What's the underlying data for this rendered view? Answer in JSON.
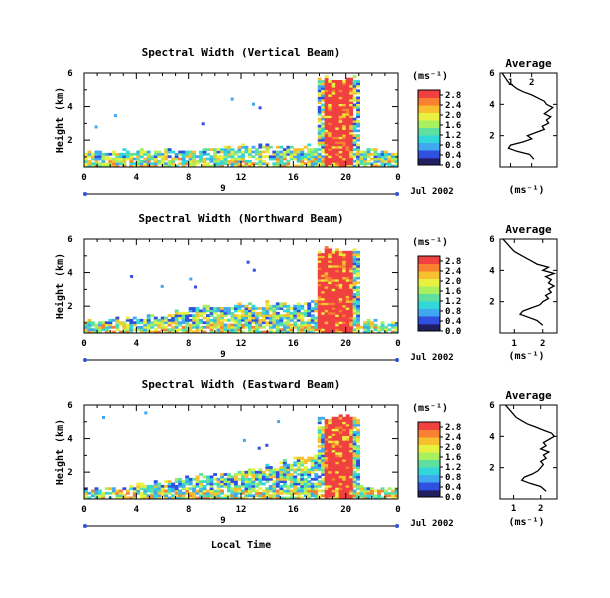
{
  "figure": {
    "xlabel": "Local Time",
    "date_label": "Jul 2002",
    "day_marker": "9",
    "unit_label": "(ms⁻¹)",
    "avg_title": "Average",
    "avg_xlabel": "(ms⁻¹)",
    "ylabel": "Height (km)",
    "colorscale": [
      "#2a2a9a",
      "#3050e0",
      "#40a8f0",
      "#30d8d8",
      "#60e0a0",
      "#a8f060",
      "#e8f040",
      "#f8c030",
      "#f88030",
      "#f04040"
    ]
  },
  "chart_data": [
    {
      "type": "heatmap",
      "title": "Spectral Width (Vertical Beam)",
      "ylabel": "Height (km)",
      "xlabel": "",
      "x_ticks": [
        "0",
        "4",
        "8",
        "12",
        "16",
        "20",
        "0"
      ],
      "y_ticks": [
        "2",
        "4",
        "6"
      ],
      "xlim": [
        0,
        24
      ],
      "ylim": [
        0.4,
        6
      ],
      "colorbar_ticks": [
        "0.0",
        "0.4",
        "0.8",
        "1.2",
        "1.6",
        "2.0",
        "2.4",
        "2.8"
      ],
      "colorbar_range": [
        0,
        3
      ],
      "cloud": {
        "x_start": 18.5,
        "x_end": 20.5,
        "top": 5.9
      },
      "boundary_layer_top": [
        1.5,
        1.5,
        1.5,
        1.5,
        1.6,
        1.5,
        1.6,
        1.6,
        1.6,
        1.7,
        1.7,
        1.8,
        1.8,
        1.8,
        1.8,
        1.8,
        1.8,
        1.8,
        5.9,
        5.9,
        5.9,
        1.6,
        1.5,
        1.5
      ],
      "average": {
        "x_ticks": [
          "1",
          "2"
        ],
        "y_ticks": [
          "2",
          "4",
          "6"
        ],
        "xlim": [
          0.5,
          3.2
        ],
        "height": [
          0.5,
          0.8,
          1.0,
          1.2,
          1.4,
          1.6,
          1.8,
          2.0,
          2.2,
          2.4,
          2.6,
          2.8,
          3.0,
          3.2,
          3.4,
          3.6,
          3.8,
          4.0,
          4.2,
          4.4,
          4.6,
          4.8,
          5.0,
          5.2,
          5.4,
          5.6,
          5.8,
          6.0
        ],
        "value": [
          2.1,
          1.9,
          1.3,
          0.9,
          1.0,
          1.6,
          2.0,
          1.8,
          2.2,
          2.6,
          2.5,
          2.8,
          2.7,
          2.9,
          2.6,
          2.8,
          3.0,
          2.7,
          2.6,
          2.3,
          2.0,
          1.6,
          1.3,
          1.1,
          0.9,
          0.8,
          0.7,
          0.6
        ]
      }
    },
    {
      "type": "heatmap",
      "title": "Spectral Width (Northward Beam)",
      "ylabel": "Height (km)",
      "xlabel": "",
      "x_ticks": [
        "0",
        "4",
        "8",
        "12",
        "16",
        "20",
        "0"
      ],
      "y_ticks": [
        "2",
        "4",
        "6"
      ],
      "xlim": [
        0,
        24
      ],
      "ylim": [
        0.4,
        6
      ],
      "colorbar_ticks": [
        "0.0",
        "0.4",
        "0.8",
        "1.2",
        "1.6",
        "2.0",
        "2.4",
        "2.8"
      ],
      "colorbar_range": [
        0,
        3
      ],
      "cloud": {
        "x_start": 18.0,
        "x_end": 20.5,
        "top": 5.6
      },
      "boundary_layer_top": [
        1.3,
        1.3,
        1.4,
        1.4,
        1.5,
        1.5,
        1.6,
        1.8,
        2.0,
        2.2,
        2.1,
        2.3,
        2.3,
        2.2,
        2.3,
        2.2,
        2.3,
        2.4,
        5.6,
        5.6,
        5.6,
        1.3,
        1.2,
        1.2
      ],
      "average": {
        "x_ticks": [
          "1",
          "2"
        ],
        "y_ticks": [
          "2",
          "4",
          "6"
        ],
        "xlim": [
          0.5,
          2.5
        ],
        "height": [
          0.5,
          0.8,
          1.0,
          1.2,
          1.4,
          1.6,
          1.8,
          2.0,
          2.2,
          2.4,
          2.6,
          2.8,
          3.0,
          3.2,
          3.4,
          3.6,
          3.8,
          4.0,
          4.2,
          4.4,
          4.6,
          4.8,
          5.0,
          5.2,
          5.4,
          5.6,
          5.8,
          6.0
        ],
        "value": [
          2.0,
          1.8,
          1.5,
          1.2,
          1.3,
          1.6,
          1.9,
          2.0,
          2.2,
          2.1,
          2.3,
          2.2,
          2.4,
          2.2,
          2.3,
          2.1,
          2.4,
          2.0,
          2.2,
          1.8,
          1.6,
          1.4,
          1.2,
          1.0,
          0.9,
          0.8,
          0.7,
          0.6
        ]
      }
    },
    {
      "type": "heatmap",
      "title": "Spectral Width (Eastward Beam)",
      "ylabel": "Height (km)",
      "xlabel": "Local Time",
      "x_ticks": [
        "0",
        "4",
        "8",
        "12",
        "16",
        "20",
        "0"
      ],
      "y_ticks": [
        "2",
        "4",
        "6"
      ],
      "xlim": [
        0,
        24
      ],
      "ylim": [
        0.4,
        6
      ],
      "colorbar_ticks": [
        "0.0",
        "0.4",
        "0.8",
        "1.2",
        "1.6",
        "2.0",
        "2.4",
        "2.8"
      ],
      "colorbar_range": [
        0,
        3
      ],
      "cloud": {
        "x_start": 18.5,
        "x_end": 20.5,
        "top": 5.5
      },
      "boundary_layer_top": [
        1.1,
        1.1,
        1.2,
        1.2,
        1.4,
        1.5,
        1.6,
        1.8,
        1.9,
        2.0,
        2.0,
        2.1,
        2.2,
        2.4,
        2.5,
        2.8,
        3.0,
        3.1,
        5.5,
        5.5,
        5.5,
        1.3,
        1.2,
        1.2
      ],
      "average": {
        "x_ticks": [
          "1",
          "2"
        ],
        "y_ticks": [
          "2",
          "4",
          "6"
        ],
        "xlim": [
          0.5,
          2.6
        ],
        "height": [
          0.5,
          0.8,
          1.0,
          1.2,
          1.4,
          1.6,
          1.8,
          2.0,
          2.2,
          2.4,
          2.6,
          2.8,
          3.0,
          3.2,
          3.4,
          3.6,
          3.8,
          4.0,
          4.2,
          4.4,
          4.6,
          4.8,
          5.0,
          5.2,
          5.4,
          5.6,
          5.8,
          6.0
        ],
        "value": [
          2.2,
          2.0,
          1.6,
          1.3,
          1.4,
          1.7,
          1.9,
          2.0,
          2.1,
          2.0,
          2.2,
          2.1,
          2.3,
          2.0,
          2.2,
          2.1,
          2.3,
          2.5,
          2.4,
          2.1,
          1.8,
          1.5,
          1.3,
          1.1,
          1.0,
          0.9,
          0.8,
          0.7
        ]
      }
    }
  ]
}
